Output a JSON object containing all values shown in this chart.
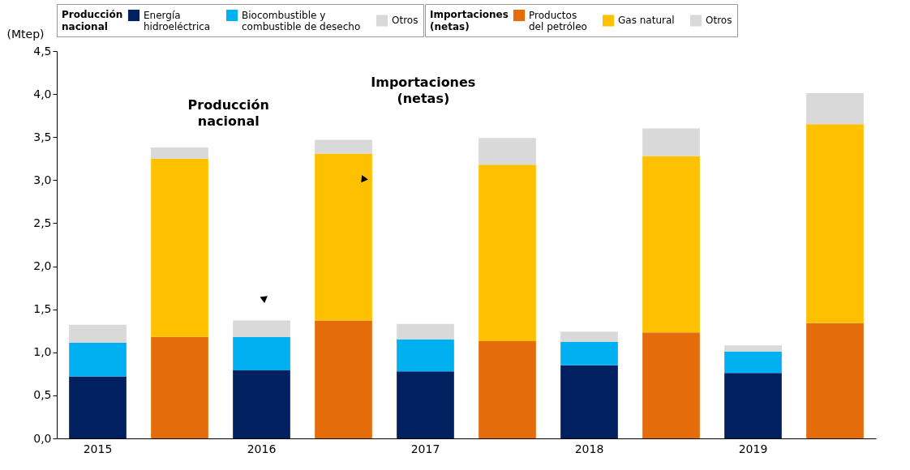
{
  "chart_data": {
    "type": "bar",
    "stacked": true,
    "ylabel": "(Mtep)",
    "categories": [
      "2015",
      null,
      "2016",
      null,
      "2017",
      null,
      "2018",
      null,
      "2019",
      null
    ],
    "ylim": [
      0,
      4.5
    ],
    "yticks": [
      {
        "value": 0,
        "label": "0,0"
      },
      {
        "value": 0.5,
        "label": "0,5"
      },
      {
        "value": 1,
        "label": "1,0"
      },
      {
        "value": 1.5,
        "label": "1,5"
      },
      {
        "value": 2,
        "label": "2,0"
      },
      {
        "value": 2.5,
        "label": "2,5"
      },
      {
        "value": 3,
        "label": "3,0"
      },
      {
        "value": 3.5,
        "label": "3,5"
      },
      {
        "value": 4,
        "label": "4,0"
      },
      {
        "value": 4.5,
        "label": "4,5"
      }
    ],
    "grid": false,
    "legend": "top",
    "series": [
      {
        "name": "Energía hidroeléctrica",
        "color": "#002060",
        "values": [
          0.72,
          null,
          0.79,
          null,
          0.78,
          null,
          0.85,
          null,
          0.76,
          null
        ]
      },
      {
        "name": "Biocombustible y combustible de desecho",
        "color": "#00b0f0",
        "values": [
          0.39,
          null,
          0.39,
          null,
          0.37,
          null,
          0.27,
          null,
          0.25,
          null
        ]
      },
      {
        "name": "Otros",
        "color": "#d9d9d9",
        "values": [
          0.21,
          null,
          0.19,
          null,
          0.18,
          null,
          0.12,
          null,
          0.07,
          null
        ]
      },
      {
        "name": "Productos del petróleo",
        "color": "#e46c0a",
        "values": [
          null,
          1.18,
          null,
          1.37,
          null,
          1.13,
          null,
          1.23,
          null,
          1.34
        ]
      },
      {
        "name": "Gas natural",
        "color": "#ffc000",
        "values": [
          null,
          2.07,
          null,
          1.94,
          null,
          2.05,
          null,
          2.05,
          null,
          2.31
        ]
      },
      {
        "name": "Otros",
        "color": "#d9d9d9",
        "values": [
          null,
          0.13,
          null,
          0.16,
          null,
          0.31,
          null,
          0.32,
          null,
          0.36
        ]
      }
    ],
    "annotations": [
      "Producción nacional",
      "Importaciones (netas)"
    ]
  }
}
